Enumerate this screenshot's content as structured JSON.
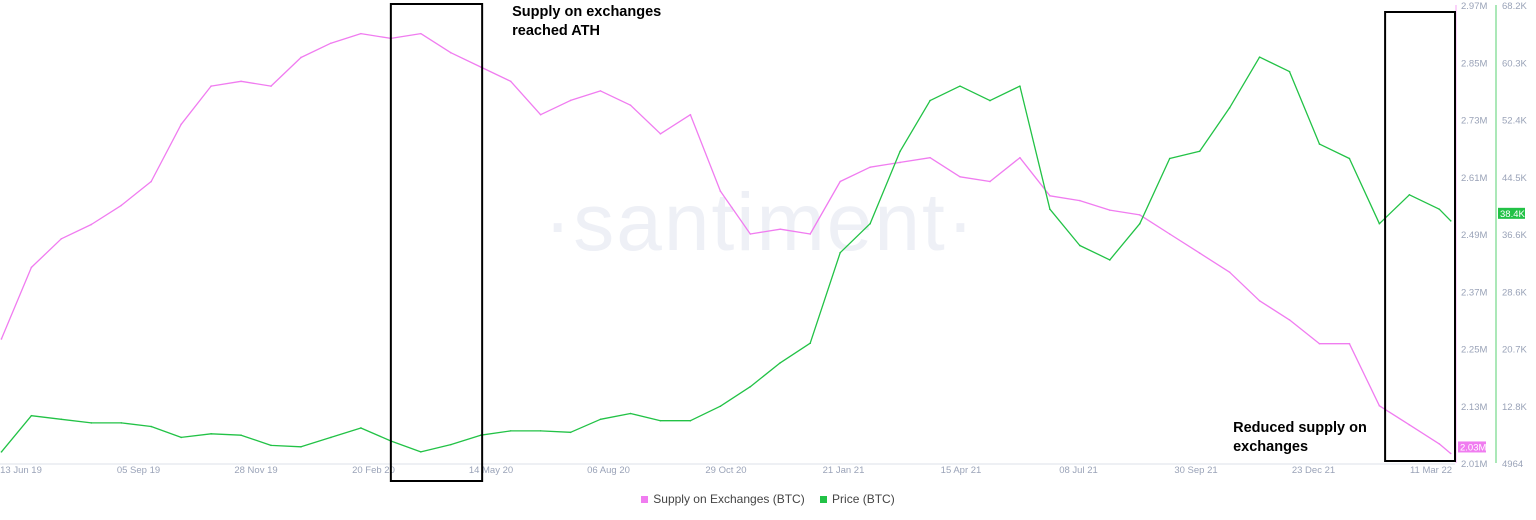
{
  "chart_data": {
    "type": "line",
    "watermark": "·santiment·",
    "x_ticks": [
      "13 Jun 19",
      "05 Sep 19",
      "28 Nov 19",
      "20 Feb 20",
      "14 May 20",
      "06 Aug 20",
      "29 Oct 20",
      "21 Jan 21",
      "15 Apr 21",
      "08 Jul 21",
      "30 Sep 21",
      "23 Dec 21",
      "11 Mar 22"
    ],
    "x_range": [
      "2019-05-29",
      "2022-03-14"
    ],
    "y_left_ticks": [],
    "y_supply": {
      "ticks": [
        "2.97M",
        "2.85M",
        "2.73M",
        "2.61M",
        "2.49M",
        "2.37M",
        "2.25M",
        "2.13M",
        "2.01M"
      ],
      "range": [
        2.01,
        2.97
      ],
      "unit": "M BTC",
      "current_label": "2.03M",
      "color": "#f07cf0"
    },
    "y_price": {
      "ticks": [
        "68.2K",
        "60.3K",
        "52.4K",
        "44.5K",
        "36.6K",
        "28.6K",
        "20.7K",
        "12.8K",
        "4964"
      ],
      "range": [
        4.964,
        68.2
      ],
      "unit": "K USD",
      "current_label": "38.4K",
      "color": "#22c246"
    },
    "dates": [
      "2019-05-30",
      "2019-06-20",
      "2019-07-11",
      "2019-08-01",
      "2019-08-22",
      "2019-09-12",
      "2019-10-03",
      "2019-10-24",
      "2019-11-14",
      "2019-12-05",
      "2019-12-26",
      "2020-01-16",
      "2020-02-06",
      "2020-02-27",
      "2020-03-19",
      "2020-04-09",
      "2020-04-30",
      "2020-05-21",
      "2020-06-11",
      "2020-07-02",
      "2020-07-23",
      "2020-08-13",
      "2020-09-03",
      "2020-09-24",
      "2020-10-15",
      "2020-11-05",
      "2020-11-26",
      "2020-12-17",
      "2021-01-07",
      "2021-01-28",
      "2021-02-18",
      "2021-03-11",
      "2021-04-01",
      "2021-04-22",
      "2021-05-13",
      "2021-06-03",
      "2021-06-24",
      "2021-07-15",
      "2021-08-05",
      "2021-08-26",
      "2021-09-16",
      "2021-10-07",
      "2021-10-28",
      "2021-11-18",
      "2021-12-09",
      "2021-12-30",
      "2022-01-20",
      "2022-02-10",
      "2022-03-03",
      "2022-03-11"
    ],
    "series": [
      {
        "name": "Supply on Exchanges (BTC)",
        "axis": "supply",
        "color": "#f07cf0",
        "values": [
          2.27,
          2.42,
          2.48,
          2.51,
          2.55,
          2.6,
          2.72,
          2.8,
          2.81,
          2.8,
          2.86,
          2.89,
          2.91,
          2.9,
          2.91,
          2.87,
          2.84,
          2.81,
          2.74,
          2.77,
          2.79,
          2.76,
          2.7,
          2.74,
          2.58,
          2.49,
          2.5,
          2.49,
          2.6,
          2.63,
          2.64,
          2.65,
          2.61,
          2.6,
          2.65,
          2.57,
          2.56,
          2.54,
          2.53,
          2.49,
          2.45,
          2.41,
          2.35,
          2.31,
          2.26,
          2.26,
          2.13,
          2.09,
          2.05,
          2.03
        ]
      },
      {
        "name": "Price (BTC)",
        "axis": "price",
        "color": "#22c246",
        "values": [
          6.5,
          11.5,
          11.0,
          10.5,
          10.5,
          10.0,
          8.5,
          9.0,
          8.8,
          7.4,
          7.2,
          8.5,
          9.8,
          8.0,
          6.5,
          7.5,
          8.8,
          9.4,
          9.4,
          9.2,
          11.0,
          11.8,
          10.8,
          10.8,
          12.8,
          15.5,
          18.8,
          21.5,
          34,
          38,
          48,
          55,
          57,
          55,
          57,
          40,
          35,
          33,
          38,
          47,
          48,
          54,
          61,
          59,
          49,
          47,
          38,
          42,
          40,
          38.4
        ]
      }
    ],
    "annotations": [
      {
        "text": [
          "Supply on exchanges",
          "reached ATH"
        ],
        "range": [
          "2020-02-27",
          "2020-05-01"
        ]
      },
      {
        "text": [
          "Reduced supply on",
          "exchanges"
        ],
        "range": [
          "2022-01-24",
          "2022-03-14"
        ]
      }
    ],
    "legend": {
      "position": "bottom",
      "items": [
        "Supply on Exchanges (BTC)",
        "Price (BTC)"
      ]
    },
    "grid": false
  }
}
